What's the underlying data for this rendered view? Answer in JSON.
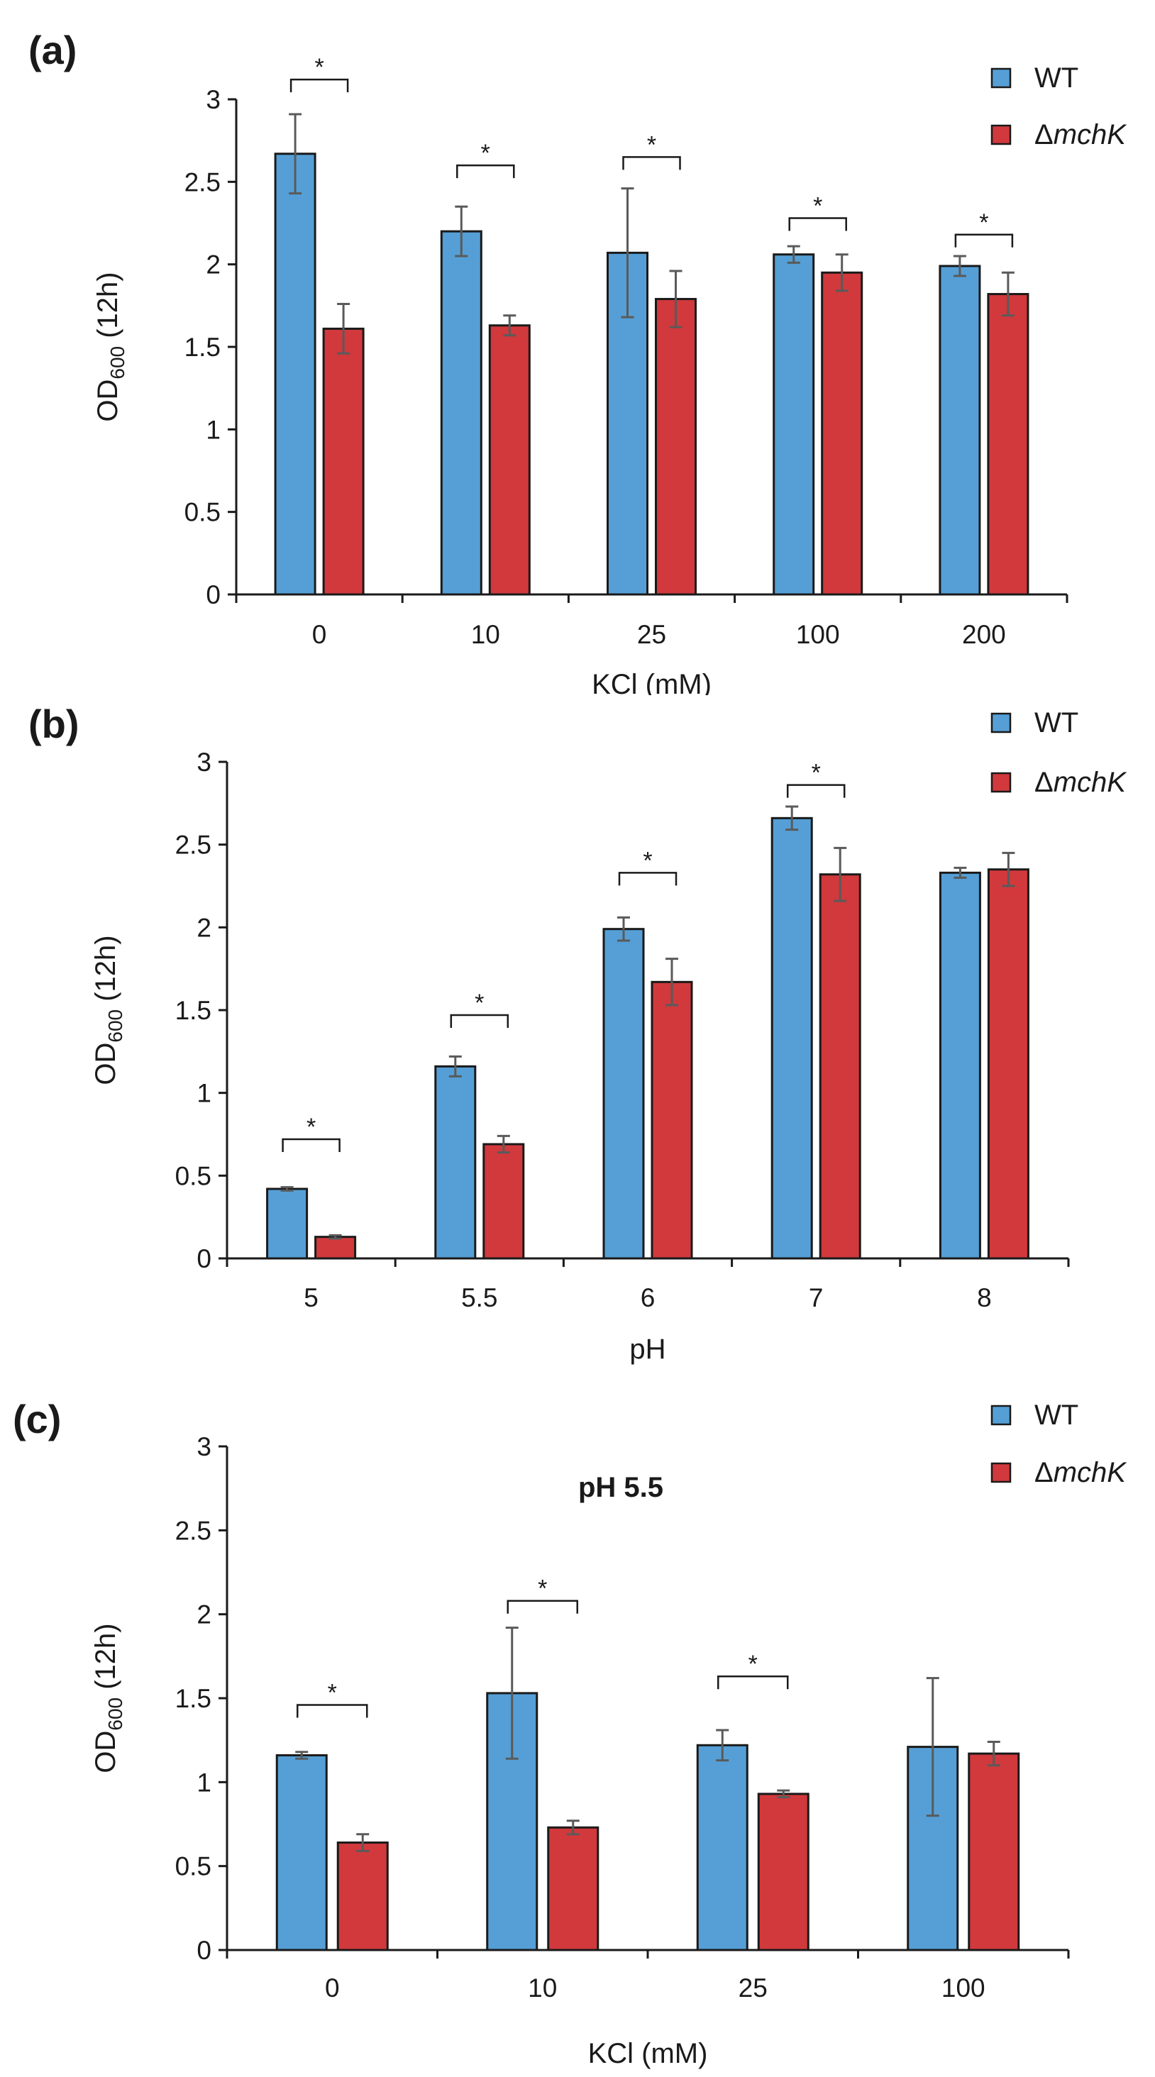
{
  "colors": {
    "wt": "#559fd6",
    "mutant": "#d1393c",
    "axis": "#1a1a1a",
    "errorbar": "#5a5a5a"
  },
  "chart_data": [
    {
      "panel_label": "(a)",
      "type": "bar",
      "title": "",
      "xlabel": "KCl (mM)",
      "ylabel": "OD600 (12h)",
      "ylabel_main": "OD",
      "ylabel_sub": "600",
      "ylabel_rest": " (12h)",
      "ylim": [
        0,
        3
      ],
      "yticks": [
        "0",
        "0.5",
        "1",
        "1.5",
        "2",
        "2.5",
        "3"
      ],
      "categories": [
        "0",
        "10",
        "25",
        "100",
        "200"
      ],
      "legend": {
        "position": "top-right",
        "wt": "WT",
        "mutant_prefix": "Δ",
        "mutant_name": "mchK"
      },
      "series": [
        {
          "name": "WT",
          "values": [
            2.67,
            2.2,
            2.07,
            2.06,
            1.99
          ],
          "errors": [
            0.24,
            0.15,
            0.39,
            0.05,
            0.06
          ]
        },
        {
          "name": "ΔmchK",
          "values": [
            1.61,
            1.63,
            1.79,
            1.95,
            1.82
          ],
          "errors": [
            0.15,
            0.06,
            0.17,
            0.11,
            0.13
          ]
        }
      ],
      "significance": [
        {
          "category": "0",
          "label": "*",
          "at": 3.12
        },
        {
          "category": "10",
          "label": "*",
          "at": 2.6
        },
        {
          "category": "25",
          "label": "*",
          "at": 2.65
        },
        {
          "category": "100",
          "label": "*",
          "at": 2.28
        },
        {
          "category": "200",
          "label": "*",
          "at": 2.18
        }
      ]
    },
    {
      "panel_label": "(b)",
      "type": "bar",
      "title": "",
      "xlabel": "pH",
      "ylabel": "OD600 (12h)",
      "ylabel_main": "OD",
      "ylabel_sub": "600",
      "ylabel_rest": " (12h)",
      "ylim": [
        0,
        3
      ],
      "yticks": [
        "0",
        "0.5",
        "1",
        "1.5",
        "2",
        "2.5",
        "3"
      ],
      "categories": [
        "5",
        "5.5",
        "6",
        "7",
        "8"
      ],
      "legend": {
        "position": "top-right",
        "wt": "WT",
        "mutant_prefix": "Δ",
        "mutant_name": "mchK"
      },
      "series": [
        {
          "name": "WT",
          "values": [
            0.42,
            1.16,
            1.99,
            2.66,
            2.33
          ],
          "errors": [
            0.01,
            0.06,
            0.07,
            0.07,
            0.03
          ]
        },
        {
          "name": "ΔmchK",
          "values": [
            0.13,
            0.69,
            1.67,
            2.32,
            2.35
          ],
          "errors": [
            0.01,
            0.05,
            0.14,
            0.16,
            0.1
          ]
        }
      ],
      "significance": [
        {
          "category": "5",
          "label": "*",
          "at": 0.72
        },
        {
          "category": "5.5",
          "label": "*",
          "at": 1.47
        },
        {
          "category": "6",
          "label": "*",
          "at": 2.33
        },
        {
          "category": "7",
          "label": "*",
          "at": 2.86
        }
      ]
    },
    {
      "panel_label": "(c)",
      "type": "bar",
      "title": "pH 5.5",
      "xlabel": "KCl (mM)",
      "ylabel": "OD600 (12h)",
      "ylabel_main": "OD",
      "ylabel_sub": "600",
      "ylabel_rest": " (12h)",
      "ylim": [
        0,
        3
      ],
      "yticks": [
        "0",
        "0.5",
        "1",
        "1.5",
        "2",
        "2.5",
        "3"
      ],
      "categories": [
        "0",
        "10",
        "25",
        "100"
      ],
      "legend": {
        "position": "top-right",
        "wt": "WT",
        "mutant_prefix": "Δ",
        "mutant_name": "mchK"
      },
      "series": [
        {
          "name": "WT",
          "values": [
            1.16,
            1.53,
            1.22,
            1.21
          ],
          "errors": [
            0.02,
            0.39,
            0.09,
            0.41
          ]
        },
        {
          "name": "ΔmchK",
          "values": [
            0.64,
            0.73,
            0.93,
            1.17
          ],
          "errors": [
            0.05,
            0.04,
            0.02,
            0.07
          ]
        }
      ],
      "significance": [
        {
          "category": "0",
          "label": "*",
          "at": 1.46
        },
        {
          "category": "10",
          "label": "*",
          "at": 2.08
        },
        {
          "category": "25",
          "label": "*",
          "at": 1.63
        }
      ]
    }
  ]
}
